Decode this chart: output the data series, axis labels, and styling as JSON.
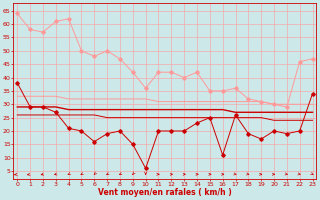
{
  "x": [
    0,
    1,
    2,
    3,
    4,
    5,
    6,
    7,
    8,
    9,
    10,
    11,
    12,
    13,
    14,
    15,
    16,
    17,
    18,
    19,
    20,
    21,
    22,
    23
  ],
  "line_rafales_max": [
    64,
    58,
    57,
    61,
    62,
    50,
    48,
    50,
    47,
    42,
    36,
    42,
    42,
    40,
    42,
    35,
    35,
    36,
    32,
    31,
    30,
    29,
    46,
    47
  ],
  "line_rafales": [
    38,
    29,
    29,
    27,
    21,
    20,
    16,
    19,
    20,
    15,
    6,
    20,
    20,
    20,
    23,
    25,
    11,
    26,
    19,
    17,
    20,
    19,
    20,
    34
  ],
  "line_moyen_high": [
    33,
    33,
    33,
    33,
    32,
    32,
    32,
    32,
    32,
    32,
    32,
    31,
    31,
    31,
    31,
    31,
    31,
    31,
    31,
    31,
    30,
    30,
    30,
    30
  ],
  "line_moyen_mid": [
    29,
    29,
    29,
    29,
    28,
    28,
    28,
    28,
    28,
    28,
    28,
    28,
    28,
    28,
    28,
    28,
    28,
    27,
    27,
    27,
    27,
    27,
    27,
    27
  ],
  "line_moyen_low": [
    26,
    26,
    26,
    26,
    26,
    26,
    26,
    25,
    25,
    25,
    25,
    25,
    25,
    25,
    25,
    25,
    25,
    25,
    25,
    25,
    24,
    24,
    24,
    24
  ],
  "background": "#cde8e8",
  "grid_color": "#ff9999",
  "color_light": "#ff9999",
  "color_dark": "#cc0000",
  "xlabel": "Vent moyen/en rafales ( km/h )",
  "ylim": [
    2,
    68
  ],
  "xlim": [
    -0.3,
    23.3
  ],
  "yticks": [
    5,
    10,
    15,
    20,
    25,
    30,
    35,
    40,
    45,
    50,
    55,
    60,
    65
  ],
  "xticks": [
    0,
    1,
    2,
    3,
    4,
    5,
    6,
    7,
    8,
    9,
    10,
    11,
    12,
    13,
    14,
    15,
    16,
    17,
    18,
    19,
    20,
    21,
    22,
    23
  ]
}
